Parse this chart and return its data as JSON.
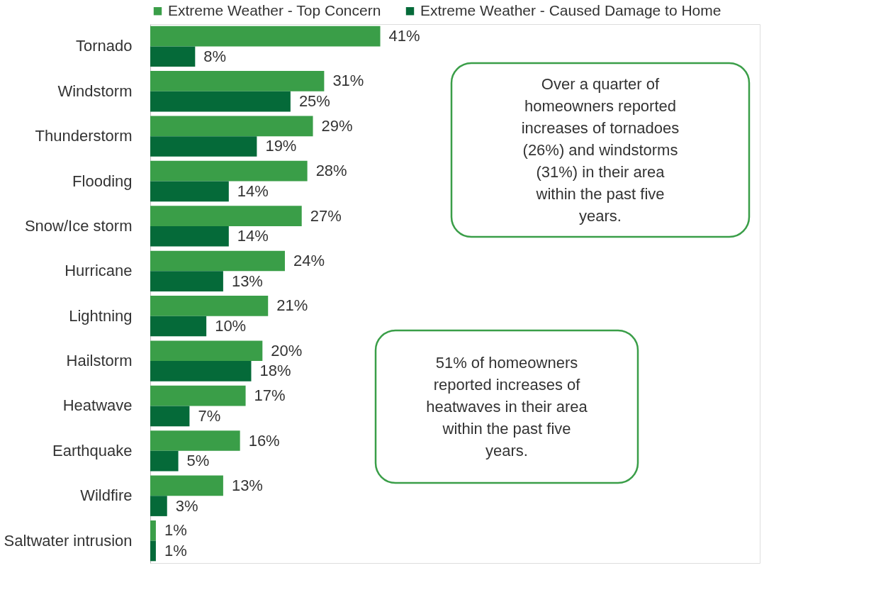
{
  "chart_data": {
    "type": "bar",
    "orientation": "horizontal",
    "categories": [
      "Tornado",
      "Windstorm",
      "Thunderstorm",
      "Flooding",
      "Snow/Ice storm",
      "Hurricane",
      "Lightning",
      "Hailstorm",
      "Heatwave",
      "Earthquake",
      "Wildfire",
      "Saltwater intrusion"
    ],
    "series": [
      {
        "name": "Extreme Weather - Top Concern",
        "color": "#3a9e48",
        "values": [
          41,
          31,
          29,
          28,
          27,
          24,
          21,
          20,
          17,
          16,
          13,
          1
        ],
        "value_labels": [
          "41%",
          "31%",
          "29%",
          "28%",
          "27%",
          "24%",
          "21%",
          "20%",
          "17%",
          "16%",
          "13%",
          "1%"
        ]
      },
      {
        "name": "Extreme Weather - Caused Damage to Home",
        "color": "#056a39",
        "values": [
          8,
          25,
          19,
          14,
          14,
          13,
          10,
          18,
          7,
          5,
          3,
          1
        ],
        "value_labels": [
          "8%",
          "25%",
          "19%",
          "14%",
          "14%",
          "13%",
          "10%",
          "18%",
          "7%",
          "5%",
          "3%",
          "1%"
        ]
      }
    ],
    "legend": "top",
    "annotations": [
      "Over a quarter of homeowners reported increases of tornadoes (26%) and windstorms (31%) in their area within the past five years.",
      "51% of homeowners reported increases of heatwaves in their area within the past five years."
    ]
  }
}
